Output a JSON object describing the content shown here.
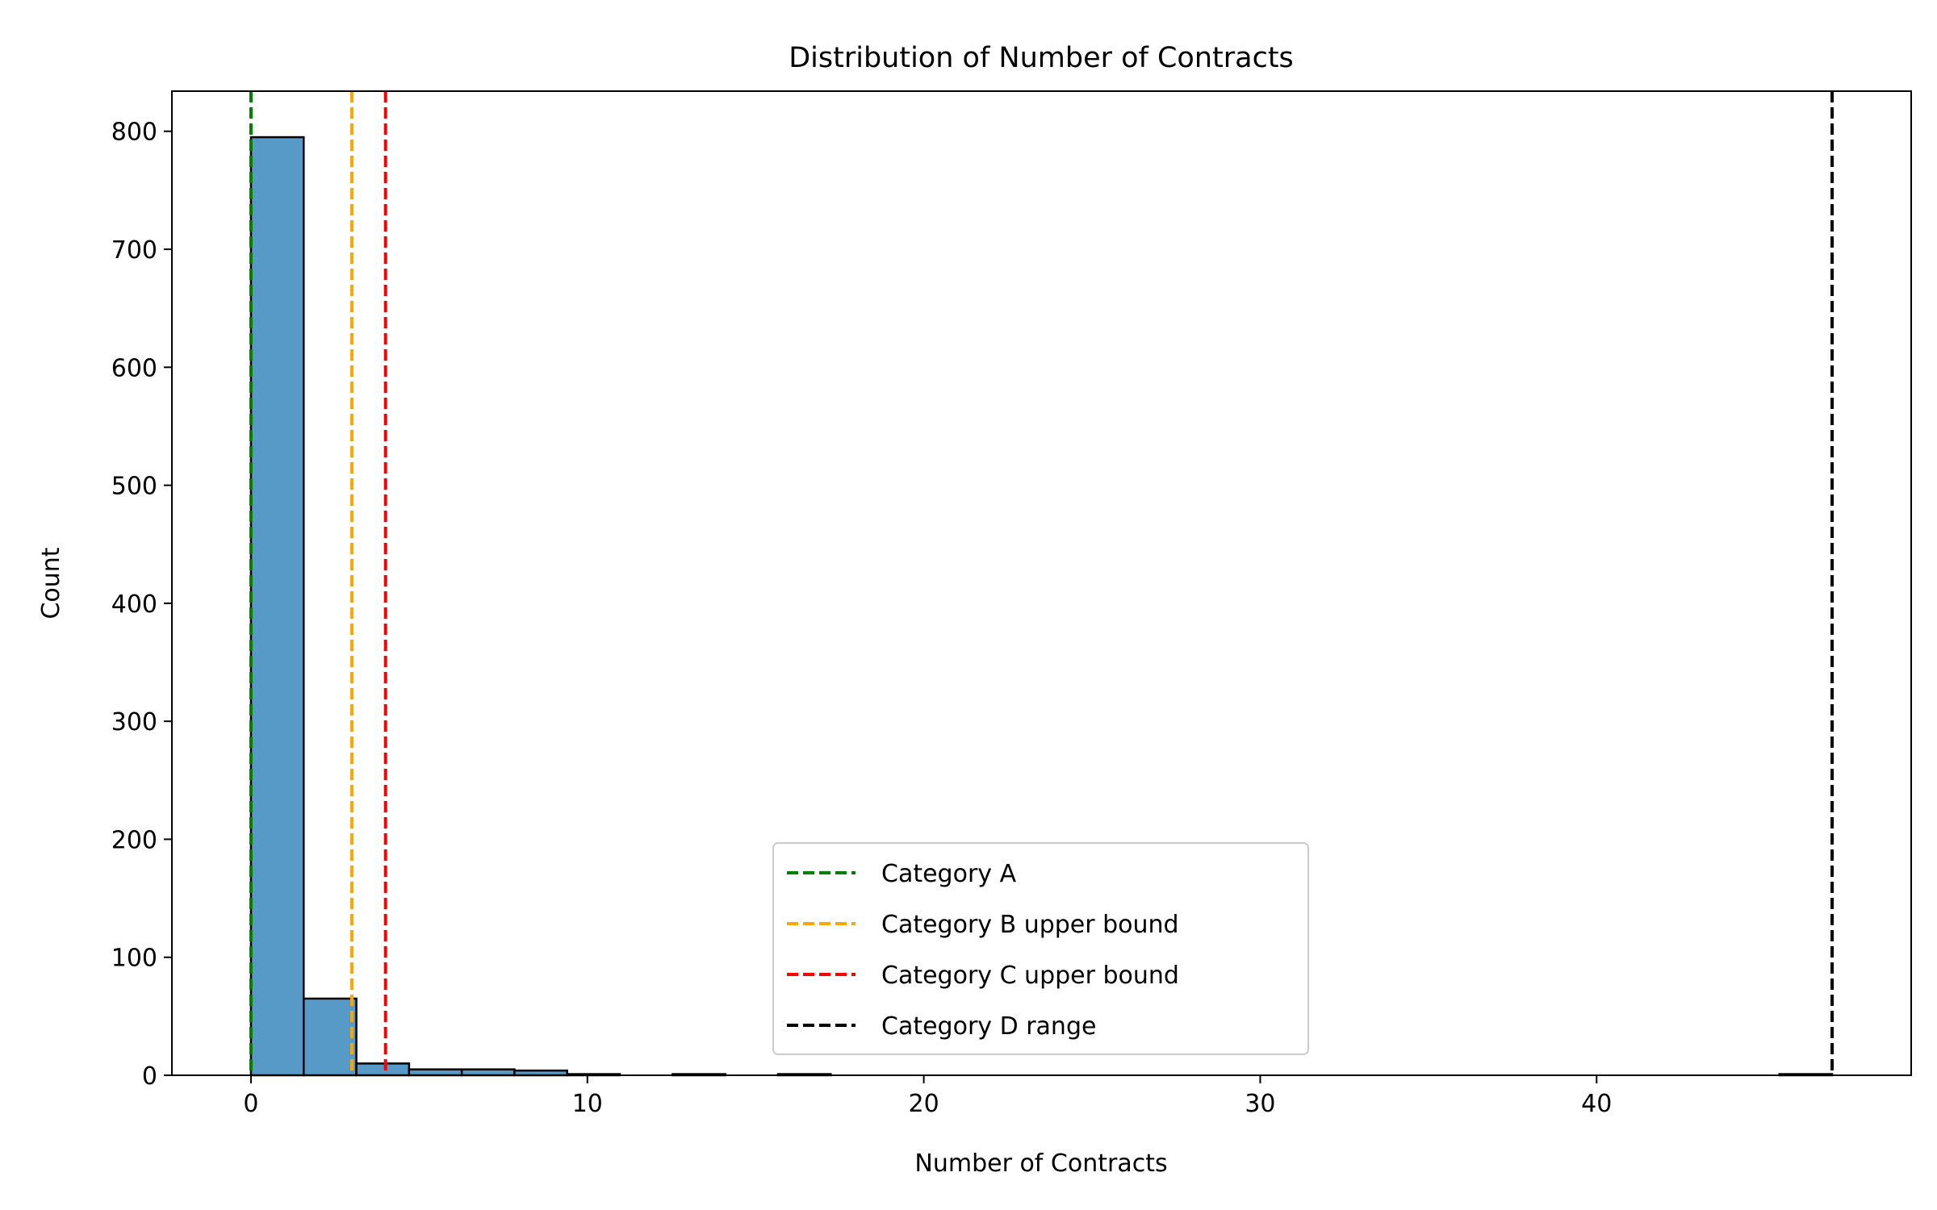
{
  "chart_data": {
    "type": "bar",
    "title": "Distribution of Number of Contracts",
    "xlabel": "Number of Contracts",
    "ylabel": "Count",
    "xlim": [
      -2.35,
      49.35
    ],
    "ylim": [
      0,
      834
    ],
    "xticks": [
      0,
      10,
      20,
      30,
      40
    ],
    "yticks": [
      0,
      100,
      200,
      300,
      400,
      500,
      600,
      700,
      800
    ],
    "bin_width": 1.5667,
    "bins": [
      {
        "start": 0.0,
        "count": 795
      },
      {
        "start": 1.5667,
        "count": 65
      },
      {
        "start": 3.1333,
        "count": 10
      },
      {
        "start": 4.7,
        "count": 5
      },
      {
        "start": 6.2667,
        "count": 5
      },
      {
        "start": 7.8333,
        "count": 4
      },
      {
        "start": 9.4,
        "count": 1
      },
      {
        "start": 10.9667,
        "count": 0
      },
      {
        "start": 12.5333,
        "count": 1
      },
      {
        "start": 14.1,
        "count": 0
      },
      {
        "start": 15.6667,
        "count": 1
      },
      {
        "start": 17.2333,
        "count": 0
      },
      {
        "start": 18.8,
        "count": 0
      },
      {
        "start": 20.3667,
        "count": 0
      },
      {
        "start": 21.9333,
        "count": 0
      },
      {
        "start": 23.5,
        "count": 0
      },
      {
        "start": 25.0667,
        "count": 0
      },
      {
        "start": 26.6333,
        "count": 0
      },
      {
        "start": 28.2,
        "count": 0
      },
      {
        "start": 29.7667,
        "count": 0
      },
      {
        "start": 31.3333,
        "count": 0
      },
      {
        "start": 32.9,
        "count": 0
      },
      {
        "start": 34.4667,
        "count": 0
      },
      {
        "start": 36.0333,
        "count": 0
      },
      {
        "start": 37.6,
        "count": 0
      },
      {
        "start": 39.1667,
        "count": 0
      },
      {
        "start": 40.7333,
        "count": 0
      },
      {
        "start": 42.3,
        "count": 0
      },
      {
        "start": 43.8667,
        "count": 0
      },
      {
        "start": 45.4333,
        "count": 1
      }
    ],
    "bar_color": "#5799c7",
    "reference_lines": [
      {
        "label": "Category A",
        "x": 0,
        "color": "#008000"
      },
      {
        "label": "Category B upper bound",
        "x": 3,
        "color": "#ffa500"
      },
      {
        "label": "Category C upper bound",
        "x": 4,
        "color": "#ff0000"
      },
      {
        "label": "Category D range",
        "x": 47,
        "color": "#000000"
      }
    ],
    "legend_position": "bottom-center",
    "grid": false
  }
}
